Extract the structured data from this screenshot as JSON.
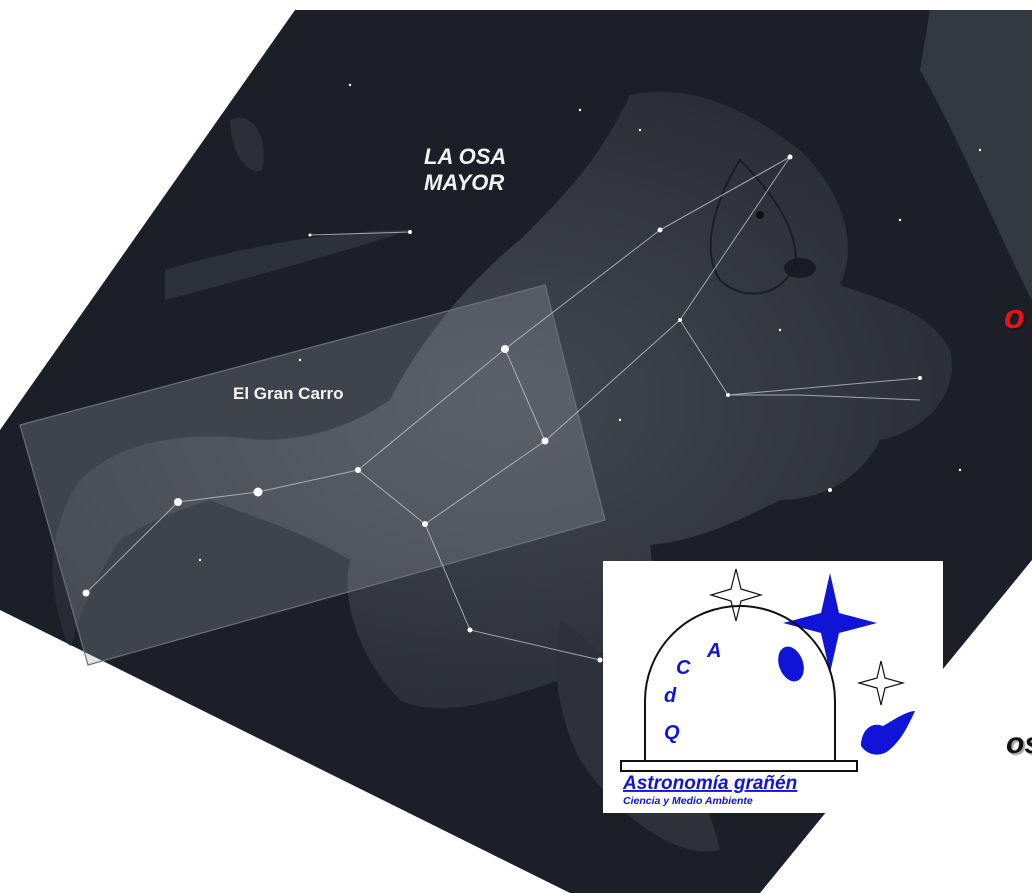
{
  "labels": {
    "constellation": [
      "LA OSA",
      "MAYOR"
    ],
    "asterism": "El Gran Carro"
  },
  "side_text": {
    "top_fragment": "o",
    "bottom_fragment": "os"
  },
  "logo": {
    "letters": [
      "A",
      "C",
      "d",
      "Q"
    ],
    "name": "Astronomía grañén",
    "tagline": "Ciencia y Medio Ambiente"
  },
  "colors": {
    "sky": "#1b1e26",
    "rectangle_fill": "#9aa3ad",
    "logo_blue": "#0f14d6",
    "fragment_red": "#e8131a"
  }
}
